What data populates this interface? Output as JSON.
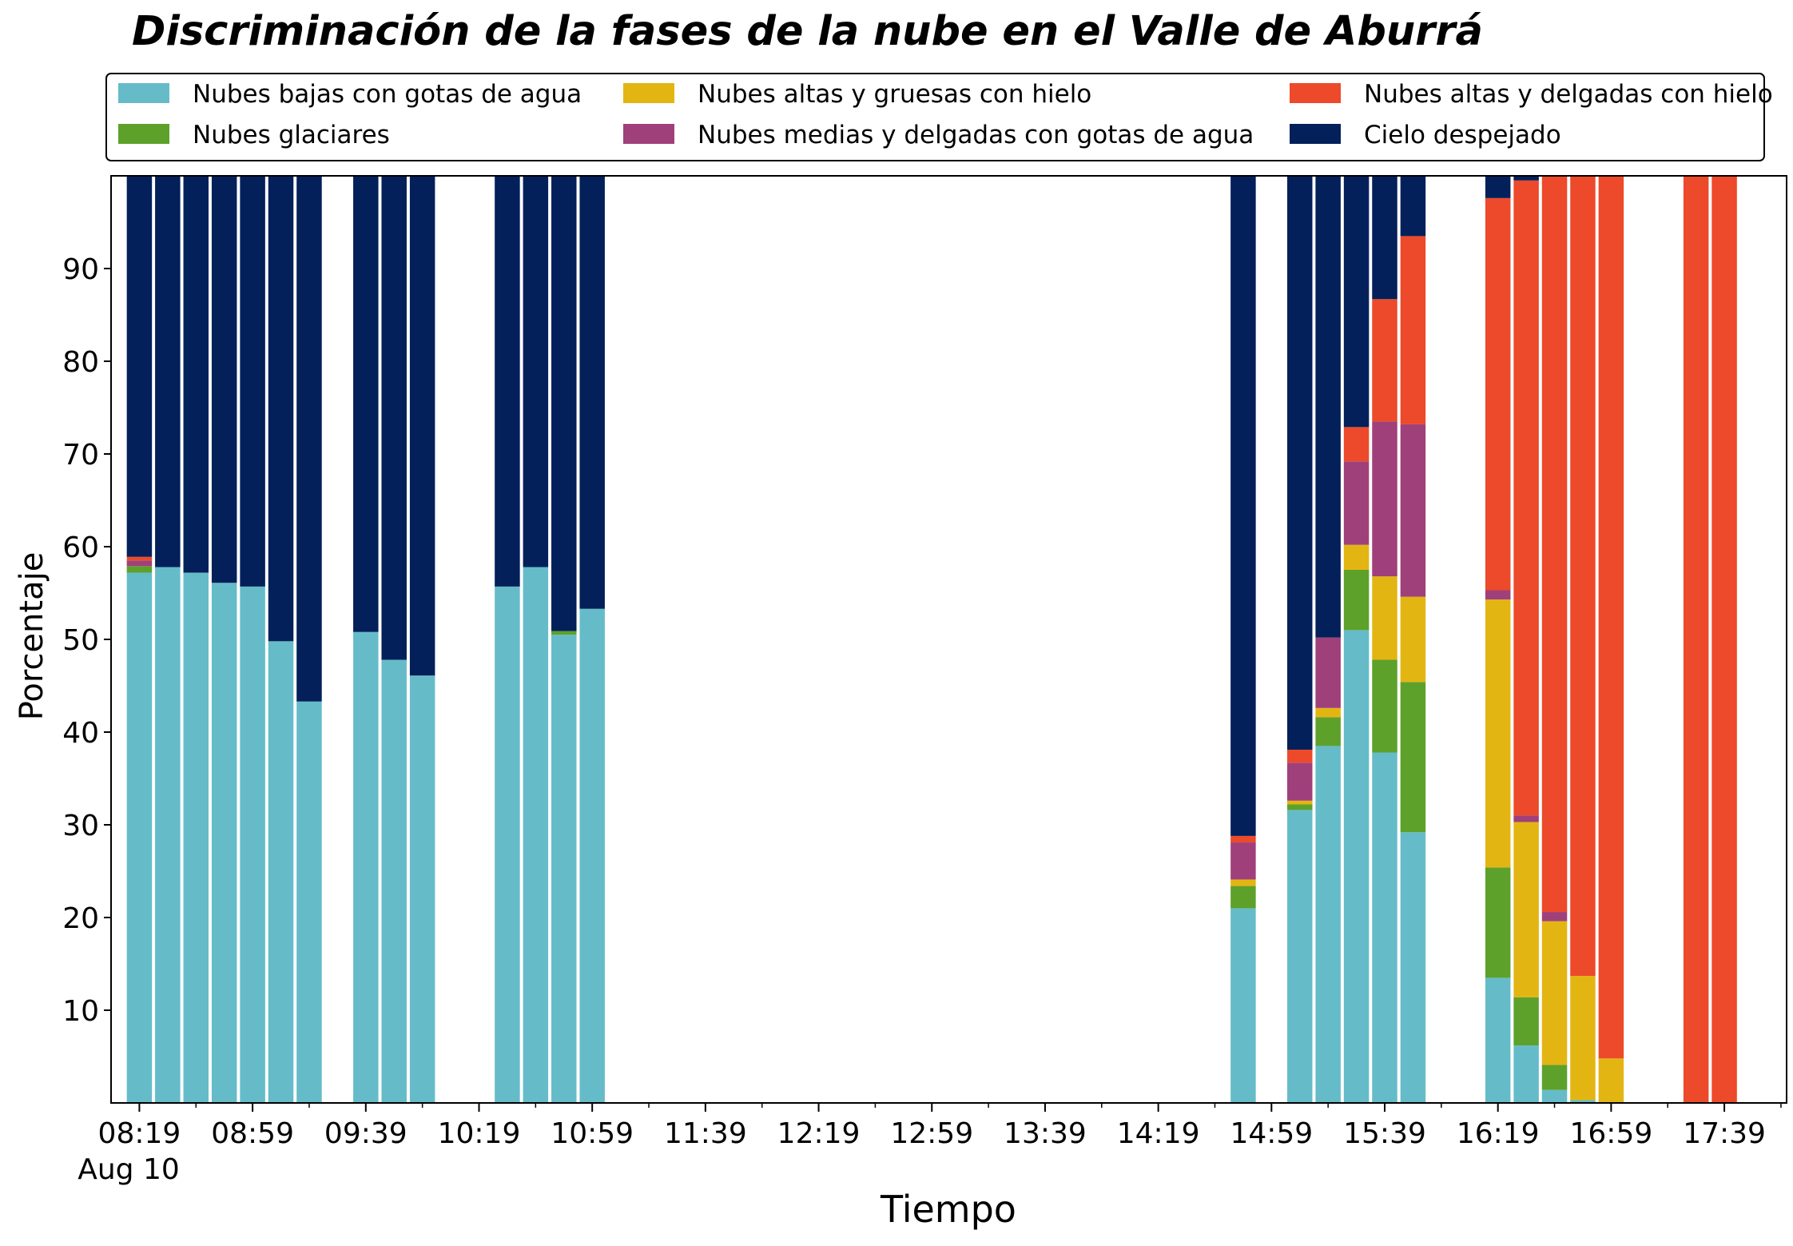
{
  "chart_data": {
    "type": "bar",
    "stacked": true,
    "title": "Discriminación de la fases de la nube en el Valle de Aburrá",
    "xlabel": "Tiempo",
    "ylabel": "Porcentaje",
    "ylim": [
      0,
      100
    ],
    "yticks": [
      10,
      20,
      30,
      40,
      50,
      60,
      70,
      80,
      90
    ],
    "xlim": [
      "08:09",
      "18:01"
    ],
    "x_major_ticks": [
      "08:19",
      "08:59",
      "09:39",
      "10:19",
      "10:59",
      "11:39",
      "12:19",
      "12:59",
      "13:39",
      "14:19",
      "14:59",
      "15:39",
      "16:19",
      "16:59",
      "17:39"
    ],
    "x_minor_ticks": [
      "08:39",
      "09:19",
      "09:59",
      "10:39",
      "11:19",
      "11:59",
      "12:39",
      "13:19",
      "13:59",
      "14:39",
      "15:19",
      "15:59",
      "16:39",
      "17:19",
      "17:59"
    ],
    "x_date_label": "Aug 10",
    "grid": false,
    "legend": {
      "placement": "top",
      "columns": 3
    },
    "x": [
      "08:19",
      "08:29",
      "08:39",
      "08:49",
      "08:59",
      "09:09",
      "09:19",
      "09:39",
      "09:49",
      "09:59",
      "10:29",
      "10:39",
      "10:49",
      "10:59",
      "14:49",
      "15:09",
      "15:19",
      "15:29",
      "15:39",
      "15:49",
      "15:59",
      "16:19",
      "16:29",
      "16:39",
      "16:49",
      "16:59",
      "17:29",
      "17:39"
    ],
    "series": [
      {
        "name": "Nubes bajas con gotas de agua",
        "color": "#65BCC8",
        "values": [
          57.2,
          57.8,
          57.2,
          56.1,
          55.7,
          49.8,
          43.3,
          50.8,
          47.8,
          46.1,
          55.7,
          57.8,
          50.5,
          53.3,
          21.0,
          31.6,
          38.5,
          51.0,
          37.8,
          29.2,
          0,
          13.5,
          6.2,
          1.4,
          0.3,
          0,
          0,
          0
        ]
      },
      {
        "name": "Nubes glaciares",
        "color": "#5DA12B",
        "values": [
          0.7,
          0,
          0,
          0,
          0,
          0,
          0,
          0,
          0,
          0,
          0,
          0,
          0.4,
          0,
          2.4,
          0.6,
          3.1,
          6.5,
          10.0,
          16.2,
          0,
          11.9,
          5.2,
          2.7,
          0,
          0,
          0,
          0
        ]
      },
      {
        "name": "Nubes altas y gruesas con hielo",
        "color": "#E3B513",
        "values": [
          0,
          0,
          0,
          0,
          0,
          0,
          0,
          0,
          0,
          0,
          0,
          0,
          0,
          0,
          0.7,
          0.4,
          1.0,
          2.7,
          9.0,
          9.2,
          0,
          28.9,
          18.9,
          15.5,
          13.4,
          4.8,
          0,
          0
        ]
      },
      {
        "name": "Nubes medias y delgadas con gotas de agua",
        "color": "#A0407A",
        "values": [
          0.6,
          0,
          0,
          0,
          0,
          0,
          0,
          0,
          0,
          0,
          0,
          0,
          0,
          0,
          4.0,
          4.1,
          7.6,
          9.0,
          16.7,
          18.6,
          0,
          1.0,
          0.7,
          1.0,
          0,
          0,
          0,
          0
        ]
      },
      {
        "name": "Nubes altas y delgadas con hielo",
        "color": "#EC4A2A",
        "values": [
          0.4,
          0,
          0,
          0,
          0,
          0,
          0,
          0,
          0,
          0,
          0,
          0,
          0,
          0,
          0.7,
          1.4,
          0,
          3.7,
          13.2,
          20.3,
          0,
          42.3,
          68.5,
          79.4,
          86.3,
          95.2,
          100,
          100
        ]
      },
      {
        "name": "Cielo despejado",
        "color": "#04205A",
        "values": [
          41.1,
          42.2,
          42.8,
          43.9,
          44.3,
          50.2,
          56.7,
          49.2,
          52.2,
          53.9,
          44.3,
          42.2,
          49.1,
          46.7,
          71.2,
          61.9,
          49.8,
          27.1,
          13.3,
          6.5,
          0,
          2.4,
          0.7,
          0,
          0,
          0,
          0,
          0
        ]
      }
    ]
  }
}
